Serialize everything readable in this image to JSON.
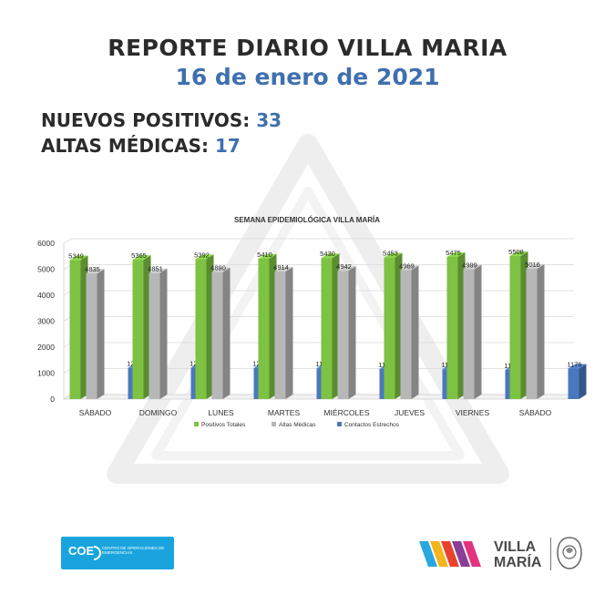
{
  "header": {
    "title": "REPORTE DIARIO VILLA MARIA",
    "date": "16 de enero de 2021"
  },
  "stats": {
    "nuevos_label": "NUEVOS POSITIVOS:",
    "nuevos_value": "33",
    "altas_label": "ALTAS MÉDICAS:",
    "altas_value": "17"
  },
  "chart_data": {
    "type": "bar",
    "title": "SEMANA EPIDEMIOLÓGICA VILLA MARÍA",
    "categories": [
      "SÁBADO",
      "DOMINGO",
      "LUNES",
      "MARTES",
      "MIÉRCOLES",
      "JUEVES",
      "VIERNES",
      "SÁBADO"
    ],
    "series": [
      {
        "name": "Positivos Totales",
        "color": "#7dc242",
        "values": [
          5349,
          5365,
          5392,
          5410,
          5430,
          5453,
          5475,
          5508
        ]
      },
      {
        "name": "Altas Médicas",
        "color": "#b7b7b7",
        "values": [
          4835,
          4851,
          4890,
          4914,
          4942,
          4969,
          4999,
          5016
        ]
      },
      {
        "name": "Contactos Estrechos",
        "color": "#4a78bd",
        "values": [
          1205,
          1209,
          1202,
          1188,
          1164,
          1152,
          1128,
          1176
        ]
      }
    ],
    "ylim": [
      0,
      6000
    ],
    "yticks": [
      0,
      1000,
      2000,
      3000,
      4000,
      5000,
      6000
    ],
    "grid": true,
    "legend": "bottom"
  },
  "logos": {
    "coe_name": "COE",
    "coe_sub": "CENTRO DE OPERACIONES DE EMERGENCIAS",
    "vm_line1": "VILLA",
    "vm_line2": "MARÍA"
  }
}
